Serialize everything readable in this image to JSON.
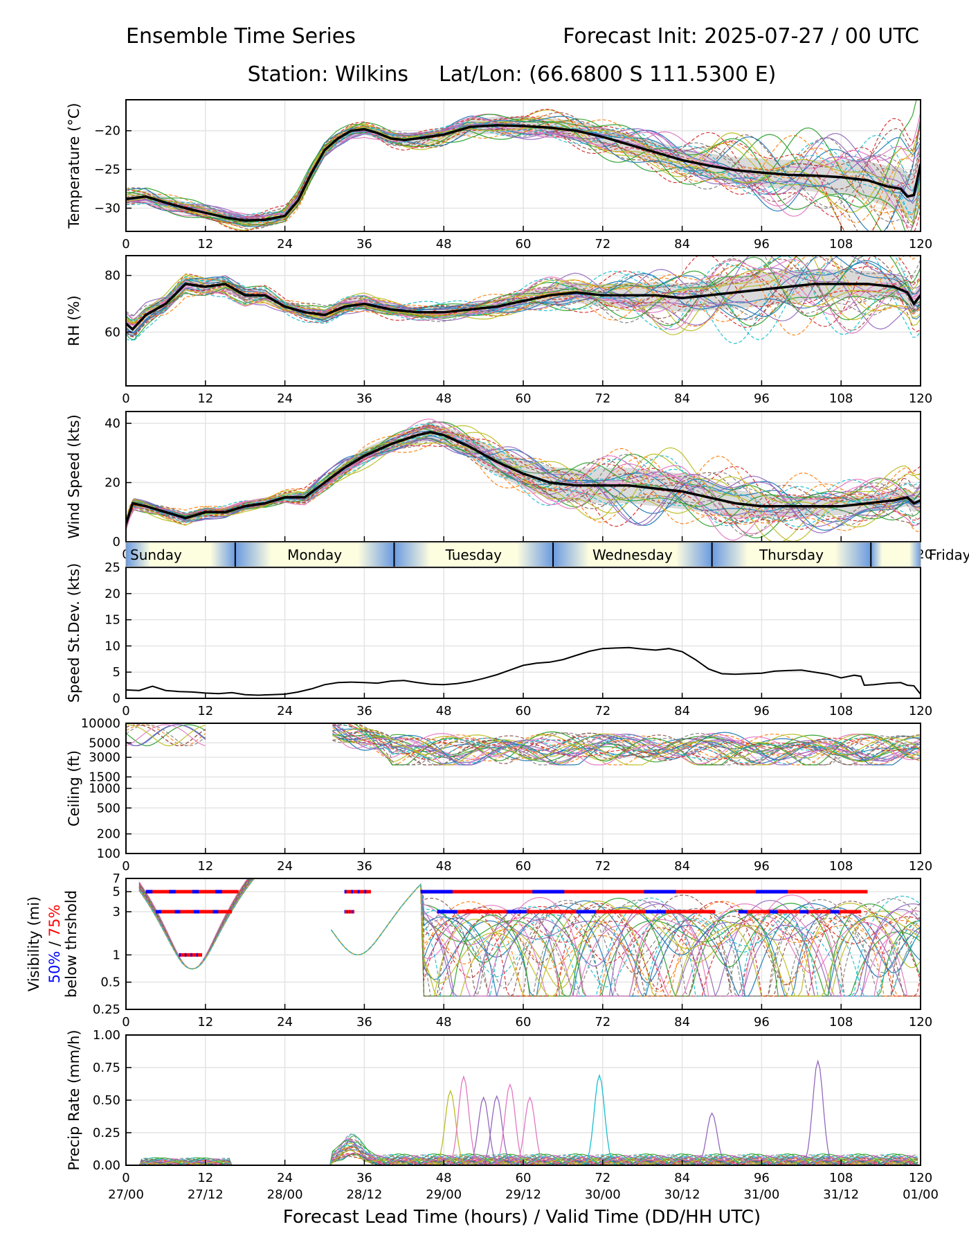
{
  "header": {
    "title_left": "Ensemble Time Series",
    "title_right": "Forecast Init: 2025-07-27 / 00 UTC",
    "station": "Station: Wilkins",
    "latlon": "Lat/Lon: (66.6800 S 111.5300 E)"
  },
  "xlabel": "Forecast Lead Time (hours) / Valid Time (DD/HH UTC)",
  "colors": {
    "members": [
      "#1f77b4",
      "#ff7f0e",
      "#2ca02c",
      "#d62728",
      "#9467bd",
      "#8c564b",
      "#e377c2",
      "#7f7f7f",
      "#bcbd22",
      "#17becf"
    ],
    "mean": "#000000",
    "spread": "#d3d3d3",
    "pct50": "#0000ff",
    "pct75": "#ff0000",
    "day_light": "#fdfde0",
    "day_dark": "#6a9ae0"
  },
  "day_strip": {
    "labels": [
      "Sunday",
      "Monday",
      "Tuesday",
      "Wednesday",
      "Thursday",
      "Friday"
    ],
    "boundaries_hours": [
      16.5,
      40.5,
      64.5,
      88.5,
      112.5
    ]
  },
  "chart_data": [
    {
      "type": "line",
      "ylabel": "Temperature (°C)",
      "xlim": [
        0,
        120
      ],
      "ylim": [
        -33,
        -16
      ],
      "yticks": [
        -30,
        -25,
        -20
      ],
      "xticks": [
        0,
        12,
        24,
        36,
        48,
        60,
        72,
        84,
        96,
        108,
        120
      ],
      "grid": true,
      "mean": {
        "x": [
          0,
          3,
          6,
          9,
          12,
          15,
          18,
          21,
          24,
          26,
          28,
          30,
          32,
          34,
          36,
          38,
          40,
          42,
          44,
          48,
          52,
          56,
          60,
          64,
          68,
          72,
          76,
          80,
          84,
          88,
          92,
          96,
          100,
          104,
          108,
          112,
          115,
          117,
          118,
          119,
          120
        ],
        "y": [
          -28.8,
          -28.5,
          -29.3,
          -30.0,
          -30.6,
          -31.2,
          -31.6,
          -31.5,
          -31.0,
          -29.0,
          -25.5,
          -22.5,
          -21.0,
          -20.0,
          -19.8,
          -20.3,
          -21.0,
          -21.2,
          -21.0,
          -20.5,
          -19.5,
          -19.3,
          -19.4,
          -19.6,
          -20.0,
          -20.8,
          -21.8,
          -22.8,
          -23.8,
          -24.5,
          -25.1,
          -25.4,
          -25.7,
          -25.8,
          -26.0,
          -26.4,
          -27.2,
          -27.5,
          -28.5,
          -28.3,
          -24.3
        ]
      },
      "spread_halfwidth": {
        "x": [
          0,
          24,
          36,
          48,
          60,
          72,
          84,
          96,
          108,
          120
        ],
        "y": [
          0.8,
          0.8,
          0.7,
          0.9,
          1.2,
          1.3,
          1.5,
          1.8,
          2.2,
          3.0
        ]
      }
    },
    {
      "type": "line",
      "ylabel": "RH (%)",
      "xlim": [
        0,
        120
      ],
      "ylim": [
        41,
        87
      ],
      "yticks": [
        60,
        80
      ],
      "xticks": [
        0,
        12,
        24,
        36,
        48,
        60,
        72,
        84,
        96,
        108,
        120
      ],
      "grid": true,
      "mean": {
        "x": [
          0,
          1,
          3,
          6,
          9,
          12,
          15,
          18,
          21,
          24,
          27,
          30,
          33,
          36,
          40,
          44,
          48,
          52,
          56,
          60,
          64,
          68,
          72,
          76,
          80,
          84,
          88,
          92,
          96,
          100,
          104,
          108,
          112,
          116,
          118,
          119,
          120
        ],
        "y": [
          63,
          61,
          66,
          70,
          77,
          76,
          77,
          73,
          73,
          69,
          67,
          66,
          69,
          70,
          68,
          67,
          67,
          68,
          69,
          71,
          73,
          74,
          73,
          73,
          73,
          72,
          73,
          74,
          75,
          76,
          77,
          77,
          77,
          76,
          74,
          70,
          73
        ]
      },
      "spread_halfwidth": {
        "x": [
          0,
          24,
          48,
          60,
          72,
          84,
          96,
          108,
          120
        ],
        "y": [
          3,
          2,
          2,
          3,
          4,
          5,
          6,
          5,
          4
        ]
      }
    },
    {
      "type": "line",
      "ylabel": "Wind Speed (kts)",
      "xlim": [
        0,
        120
      ],
      "ylim": [
        0,
        44
      ],
      "yticks": [
        0,
        20,
        40
      ],
      "xticks": [
        0,
        12,
        24,
        36,
        48,
        60,
        72,
        84,
        96,
        108,
        120
      ],
      "grid": true,
      "mean": {
        "x": [
          0,
          1,
          3,
          6,
          9,
          12,
          15,
          18,
          21,
          24,
          27,
          30,
          33,
          36,
          40,
          44,
          46,
          48,
          52,
          56,
          60,
          64,
          68,
          72,
          76,
          80,
          84,
          88,
          92,
          96,
          100,
          104,
          108,
          112,
          116,
          118,
          119,
          120
        ],
        "y": [
          6,
          13,
          12,
          10,
          8,
          10,
          10,
          12,
          13,
          15,
          15,
          20,
          25,
          29,
          33,
          36,
          37,
          36,
          32,
          27,
          23,
          20,
          19,
          19,
          19,
          18,
          17,
          15,
          13,
          12,
          12,
          12,
          12,
          13,
          14,
          15,
          13,
          14
        ]
      },
      "spread_halfwidth": {
        "x": [
          0,
          24,
          36,
          48,
          60,
          72,
          84,
          96,
          108,
          120
        ],
        "y": [
          1.5,
          1.5,
          2.5,
          3,
          5,
          6,
          6,
          4,
          3,
          3
        ]
      }
    },
    {
      "type": "line",
      "ylabel": "Speed St.Dev. (kts)",
      "xlim": [
        0,
        120
      ],
      "ylim": [
        0,
        25
      ],
      "yticks": [
        0,
        5,
        10,
        15,
        20,
        25
      ],
      "xticks": [
        0,
        12,
        24,
        36,
        48,
        60,
        72,
        84,
        96,
        108,
        120
      ],
      "grid": true,
      "series": [
        {
          "x": [
            0,
            2,
            4,
            6,
            8,
            10,
            12,
            14,
            16,
            18,
            20,
            22,
            24,
            26,
            28,
            30,
            32,
            34,
            36,
            38,
            40,
            42,
            44,
            46,
            48,
            50,
            52,
            54,
            56,
            58,
            60,
            62,
            64,
            66,
            68,
            70,
            72,
            74,
            76,
            78,
            80,
            82,
            84,
            86,
            88,
            90,
            92,
            94,
            96,
            98,
            100,
            102,
            104,
            106,
            108,
            110,
            111,
            111.5,
            113,
            115,
            117,
            118,
            119,
            120
          ],
          "y": [
            1.6,
            1.5,
            2.3,
            1.5,
            1.3,
            1.2,
            1.0,
            0.9,
            1.1,
            0.7,
            0.6,
            0.7,
            0.8,
            1.2,
            1.8,
            2.6,
            3.0,
            3.1,
            3.0,
            2.9,
            3.3,
            3.4,
            3.0,
            2.7,
            2.6,
            2.8,
            3.2,
            3.8,
            4.5,
            5.4,
            6.3,
            6.7,
            6.9,
            7.4,
            8.2,
            9.0,
            9.5,
            9.6,
            9.7,
            9.4,
            9.2,
            9.5,
            8.9,
            7.4,
            5.6,
            4.7,
            4.6,
            4.7,
            4.8,
            5.2,
            5.3,
            5.4,
            5.0,
            4.6,
            3.9,
            4.4,
            4.2,
            2.5,
            2.6,
            2.9,
            3.0,
            2.5,
            2.4,
            0.8
          ]
        }
      ]
    },
    {
      "type": "line",
      "ylabel": "Ceiling (ft)",
      "scale": "log",
      "xlim": [
        0,
        120
      ],
      "ylim": [
        100,
        10000
      ],
      "yticks": [
        100,
        200,
        500,
        1000,
        1500,
        3000,
        5000,
        10000
      ],
      "xticks": [
        0,
        12,
        24,
        36,
        48,
        60,
        72,
        84,
        96,
        108,
        120
      ],
      "grid": true
    },
    {
      "type": "line",
      "ylabel": "Visibility (mi)",
      "ylabel_parts": [
        "50%",
        " / ",
        "75%"
      ],
      "ylabel2": "below thrshold",
      "scale": "log",
      "xlim": [
        0,
        120
      ],
      "ylim": [
        0.25,
        7
      ],
      "yticks": [
        0.25,
        0.5,
        1,
        3,
        5,
        7
      ],
      "xticks": [
        0,
        12,
        24,
        36,
        48,
        60,
        72,
        84,
        96,
        108,
        120
      ],
      "grid": true,
      "threshold_bars": [
        {
          "threshold": 5,
          "from": 3,
          "to": 17,
          "pct": "75%"
        },
        {
          "threshold": 5,
          "from": 33,
          "to": 37,
          "pct": "75%"
        },
        {
          "threshold": 5,
          "from": 44.5,
          "to": 112,
          "pct": "75%"
        },
        {
          "threshold": 3,
          "from": 4.5,
          "to": 16,
          "pct": "75%"
        },
        {
          "threshold": 3,
          "from": 33,
          "to": 34.5,
          "pct": "75%"
        },
        {
          "threshold": 3,
          "from": 47,
          "to": 89,
          "pct": "75%"
        },
        {
          "threshold": 3,
          "from": 92.5,
          "to": 111,
          "pct": "75%"
        },
        {
          "threshold": 1,
          "from": 8,
          "to": 11.5,
          "pct": "75%"
        }
      ]
    },
    {
      "type": "line",
      "ylabel": "Precip Rate (mm/h)",
      "xlim": [
        0,
        120
      ],
      "ylim": [
        0,
        1.0
      ],
      "yticks": [
        0.0,
        0.25,
        0.5,
        0.75,
        1.0
      ],
      "xticks": [
        0,
        12,
        24,
        36,
        48,
        60,
        72,
        84,
        96,
        108,
        120
      ],
      "xticklabels2": [
        "27/00",
        "27/12",
        "28/00",
        "28/12",
        "29/00",
        "29/12",
        "30/00",
        "30/12",
        "31/00",
        "31/12",
        "01/00"
      ],
      "grid": true
    }
  ]
}
